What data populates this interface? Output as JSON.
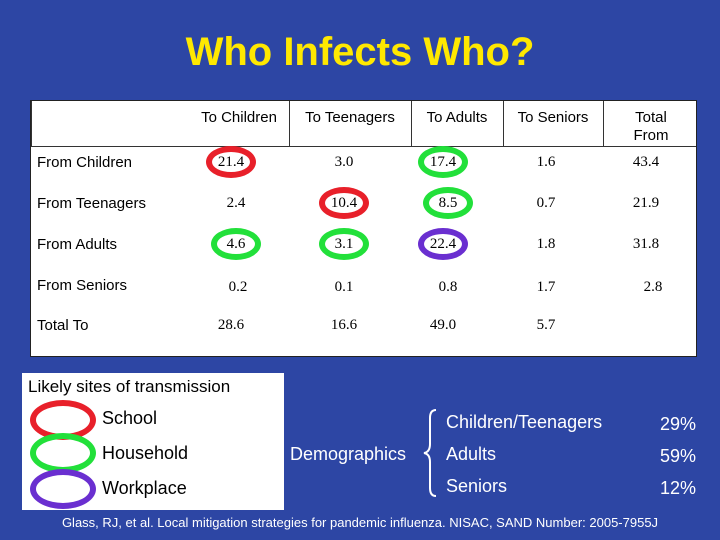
{
  "title": "Who Infects Who?",
  "table": {
    "columns": [
      "To Children",
      "To Teenagers",
      "To Adults",
      "To Seniors",
      "Total\nFrom"
    ],
    "rows": [
      {
        "label": "From Children",
        "values": [
          "21.4",
          "3.0",
          "17.4",
          "1.6",
          "43.4"
        ]
      },
      {
        "label": "From Teenagers",
        "values": [
          "2.4",
          "10.4",
          "8.5",
          "0.7",
          "21.9"
        ]
      },
      {
        "label": "From Adults",
        "values": [
          "4.6",
          "3.1",
          "22.4",
          "1.8",
          "31.8"
        ]
      },
      {
        "label": "From Seniors",
        "values": [
          "0.2",
          "0.1",
          "0.8",
          "1.7",
          "2.8"
        ]
      },
      {
        "label": "Total To",
        "values": [
          "28.6",
          "16.6",
          "49.0",
          "5.7",
          ""
        ]
      }
    ]
  },
  "legend": {
    "title": "Likely sites of transmission",
    "items": [
      {
        "label": "School",
        "color": "#e8202a"
      },
      {
        "label": "Household",
        "color": "#22e03a"
      },
      {
        "label": "Workplace",
        "color": "#6a2fd0"
      }
    ]
  },
  "demographics": {
    "label": "Demographics",
    "items": [
      {
        "group": "Children/Teenagers",
        "percent": "29%"
      },
      {
        "group": "Adults",
        "percent": "59%"
      },
      {
        "group": "Seniors",
        "percent": "12%"
      }
    ]
  },
  "source": "Glass, RJ, et al. Local mitigation strategies for pandemic influenza. NISAC, SAND Number: 2005-7955J",
  "colors": {
    "background": "#2d46a4",
    "title": "#ffe800",
    "school": "#e8202a",
    "household": "#22e03a",
    "workplace": "#6a2fd0"
  }
}
